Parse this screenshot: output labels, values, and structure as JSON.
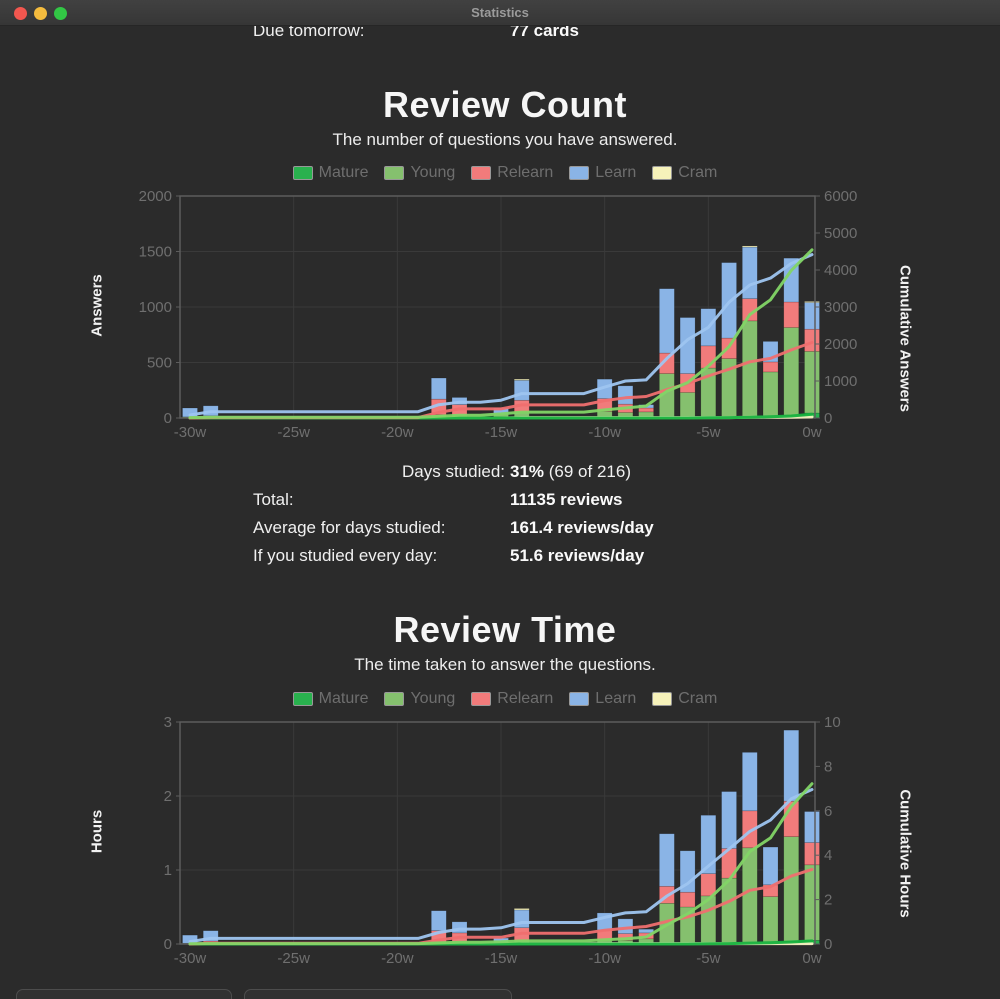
{
  "window": {
    "title": "Statistics"
  },
  "stats_header": {
    "label": "Due tomorrow:",
    "value": "77 cards"
  },
  "legend": [
    "Mature",
    "Young",
    "Relearn",
    "Learn",
    "Cram"
  ],
  "colors": {
    "background": "#2b2b2b",
    "bars": {
      "Mature": "#29b14e",
      "Young": "#85c06e",
      "Relearn": "#f17b7b",
      "Learn": "#8ab4e6",
      "Cram": "#f6f2ba"
    },
    "lines": {
      "Mature": "#16b23e",
      "Young": "#82d566",
      "Relearn": "#ef6f6f",
      "Learn": "#9ec5f0",
      "Cram": "#f6f2c0"
    },
    "grid": "#3a3a3a",
    "plot_border": "#5d5d5d",
    "tick_text": "#6f6f6f",
    "traffic_close": "#f2574f",
    "traffic_minimize": "#f5bc3e",
    "traffic_zoom": "#32c745"
  },
  "summary": {
    "days_studied_label": "Days studied:",
    "days_studied_pct": "31%",
    "days_studied_detail": " (69 of 216)",
    "rows": [
      {
        "label": "Total:",
        "value": "11135 reviews"
      },
      {
        "label": "Average for days studied:",
        "value": "161.4 reviews/day"
      },
      {
        "label": "If you studied every day:",
        "value": "51.6 reviews/day"
      }
    ]
  },
  "chart_data": [
    {
      "type": "bar",
      "id": "review-count",
      "title": "Review Count",
      "subtitle": "The number of questions you have answered.",
      "x_unit": "weeks",
      "x_range": [
        -30,
        0
      ],
      "x_ticks": [
        {
          "week": -30,
          "label": "-30w"
        },
        {
          "week": -25,
          "label": "-25w"
        },
        {
          "week": -20,
          "label": "-20w"
        },
        {
          "week": -15,
          "label": "-15w"
        },
        {
          "week": -10,
          "label": "-10w"
        },
        {
          "week": -5,
          "label": "-5w"
        },
        {
          "week": 0,
          "label": "0w"
        }
      ],
      "left_axis": {
        "label": "Answers",
        "ticks": [
          0,
          500,
          1000,
          1500,
          2000
        ],
        "max": 2000
      },
      "right_axis": {
        "label": "Cumulative Answers",
        "ticks": [
          0,
          1000,
          2000,
          3000,
          4000,
          5000,
          6000
        ],
        "max": 6000
      },
      "stack_order_bottom_to_top": [
        "Mature",
        "Young",
        "Relearn",
        "Learn",
        "Cram"
      ],
      "lines_are": "running cumulative total per series, plotted on right axis",
      "series": [
        {
          "name": "Mature",
          "values": [
            0,
            0,
            0,
            0,
            0,
            0,
            0,
            0,
            0,
            0,
            0,
            0,
            0,
            0,
            0,
            0,
            0,
            0,
            0,
            0,
            0,
            0,
            0,
            0,
            0,
            5,
            5,
            10,
            15,
            20,
            45
          ]
        },
        {
          "name": "Young",
          "values": [
            10,
            10,
            0,
            0,
            0,
            0,
            0,
            0,
            0,
            0,
            0,
            0,
            30,
            25,
            0,
            35,
            50,
            0,
            0,
            0,
            60,
            50,
            55,
            400,
            230,
            445,
            530,
            865,
            400,
            795,
            555
          ]
        },
        {
          "name": "Relearn",
          "values": [
            0,
            10,
            0,
            0,
            0,
            0,
            0,
            0,
            0,
            0,
            0,
            0,
            140,
            95,
            0,
            0,
            110,
            0,
            0,
            0,
            115,
            75,
            35,
            185,
            170,
            200,
            185,
            200,
            90,
            230,
            200
          ]
        },
        {
          "name": "Learn",
          "values": [
            80,
            90,
            0,
            0,
            0,
            0,
            0,
            0,
            0,
            0,
            0,
            0,
            190,
            65,
            0,
            55,
            180,
            0,
            0,
            0,
            175,
            165,
            30,
            580,
            505,
            335,
            680,
            465,
            185,
            395,
            240
          ]
        },
        {
          "name": "Cram",
          "values": [
            0,
            0,
            0,
            0,
            0,
            0,
            0,
            0,
            0,
            0,
            0,
            0,
            0,
            0,
            0,
            0,
            10,
            0,
            0,
            0,
            0,
            0,
            0,
            0,
            0,
            0,
            0,
            10,
            0,
            0,
            10
          ]
        }
      ]
    },
    {
      "type": "bar",
      "id": "review-time",
      "title": "Review Time",
      "subtitle": "The time taken to answer the questions.",
      "x_unit": "weeks",
      "x_range": [
        -30,
        0
      ],
      "x_ticks": [
        {
          "week": -30,
          "label": "-30w"
        },
        {
          "week": -25,
          "label": "-25w"
        },
        {
          "week": -20,
          "label": "-20w"
        },
        {
          "week": -15,
          "label": "-15w"
        },
        {
          "week": -10,
          "label": "-10w"
        },
        {
          "week": -5,
          "label": "-5w"
        },
        {
          "week": 0,
          "label": "0w"
        }
      ],
      "left_axis": {
        "label": "Hours",
        "ticks": [
          0,
          1,
          2,
          3
        ],
        "max": 3
      },
      "right_axis": {
        "label": "Cumulative Hours",
        "ticks": [
          0,
          2,
          4,
          6,
          8,
          10
        ],
        "max": 10
      },
      "stack_order_bottom_to_top": [
        "Mature",
        "Young",
        "Relearn",
        "Learn",
        "Cram"
      ],
      "lines_are": "running cumulative total per series, plotted on right axis",
      "series": [
        {
          "name": "Mature",
          "values": [
            0,
            0,
            0,
            0,
            0,
            0,
            0,
            0,
            0,
            0,
            0,
            0,
            0,
            0,
            0,
            0,
            0,
            0,
            0,
            0,
            0,
            0,
            0,
            0,
            0,
            0.01,
            0.01,
            0.02,
            0.02,
            0.03,
            0.05
          ]
        },
        {
          "name": "Young",
          "values": [
            0.01,
            0.01,
            0,
            0,
            0,
            0,
            0,
            0,
            0,
            0,
            0,
            0,
            0.03,
            0.03,
            0,
            0.02,
            0.04,
            0,
            0,
            0,
            0.05,
            0.05,
            0.07,
            0.55,
            0.5,
            0.64,
            0.88,
            1.28,
            0.62,
            1.42,
            1.02
          ]
        },
        {
          "name": "Relearn",
          "values": [
            0,
            0.03,
            0,
            0,
            0,
            0,
            0,
            0,
            0,
            0,
            0,
            0,
            0.15,
            0.12,
            0,
            0,
            0.18,
            0,
            0,
            0,
            0.14,
            0.09,
            0.08,
            0.23,
            0.2,
            0.3,
            0.4,
            0.5,
            0.16,
            0.48,
            0.3
          ]
        },
        {
          "name": "Learn",
          "values": [
            0.11,
            0.14,
            0,
            0,
            0,
            0,
            0,
            0,
            0,
            0,
            0,
            0,
            0.27,
            0.15,
            0,
            0.06,
            0.24,
            0,
            0,
            0,
            0.23,
            0.2,
            0.05,
            0.71,
            0.56,
            0.79,
            0.77,
            0.79,
            0.51,
            0.96,
            0.42
          ]
        },
        {
          "name": "Cram",
          "values": [
            0,
            0,
            0,
            0,
            0,
            0,
            0,
            0,
            0,
            0,
            0,
            0,
            0,
            0,
            0,
            0,
            0.02,
            0,
            0,
            0,
            0,
            0,
            0,
            0,
            0,
            0,
            0,
            0,
            0,
            0,
            0
          ]
        }
      ]
    }
  ]
}
